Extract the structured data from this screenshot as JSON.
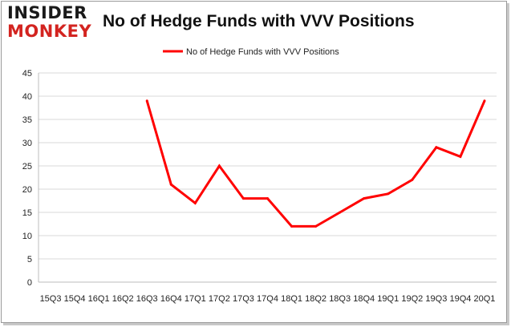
{
  "logo": {
    "line1": "INSIDER",
    "line2": "MONKEY"
  },
  "chart_data": {
    "type": "line",
    "title": "No of Hedge Funds with VVV Positions",
    "xlabel": "",
    "ylabel": "",
    "categories": [
      "15Q3",
      "15Q4",
      "16Q1",
      "16Q2",
      "16Q3",
      "16Q4",
      "17Q1",
      "17Q2",
      "17Q3",
      "17Q4",
      "18Q1",
      "18Q2",
      "18Q3",
      "18Q4",
      "19Q1",
      "19Q2",
      "19Q3",
      "19Q4",
      "20Q1"
    ],
    "series": [
      {
        "name": "No of Hedge Funds with VVV  Positions",
        "color": "#ff0000",
        "values": [
          null,
          null,
          null,
          null,
          39,
          21,
          17,
          25,
          18,
          18,
          12,
          12,
          15,
          18,
          19,
          22,
          29,
          27,
          39
        ]
      }
    ],
    "ylim": [
      0,
      45
    ],
    "yticks": [
      0,
      5,
      10,
      15,
      20,
      25,
      30,
      35,
      40,
      45
    ],
    "grid": true,
    "legend_position": "top-center"
  }
}
